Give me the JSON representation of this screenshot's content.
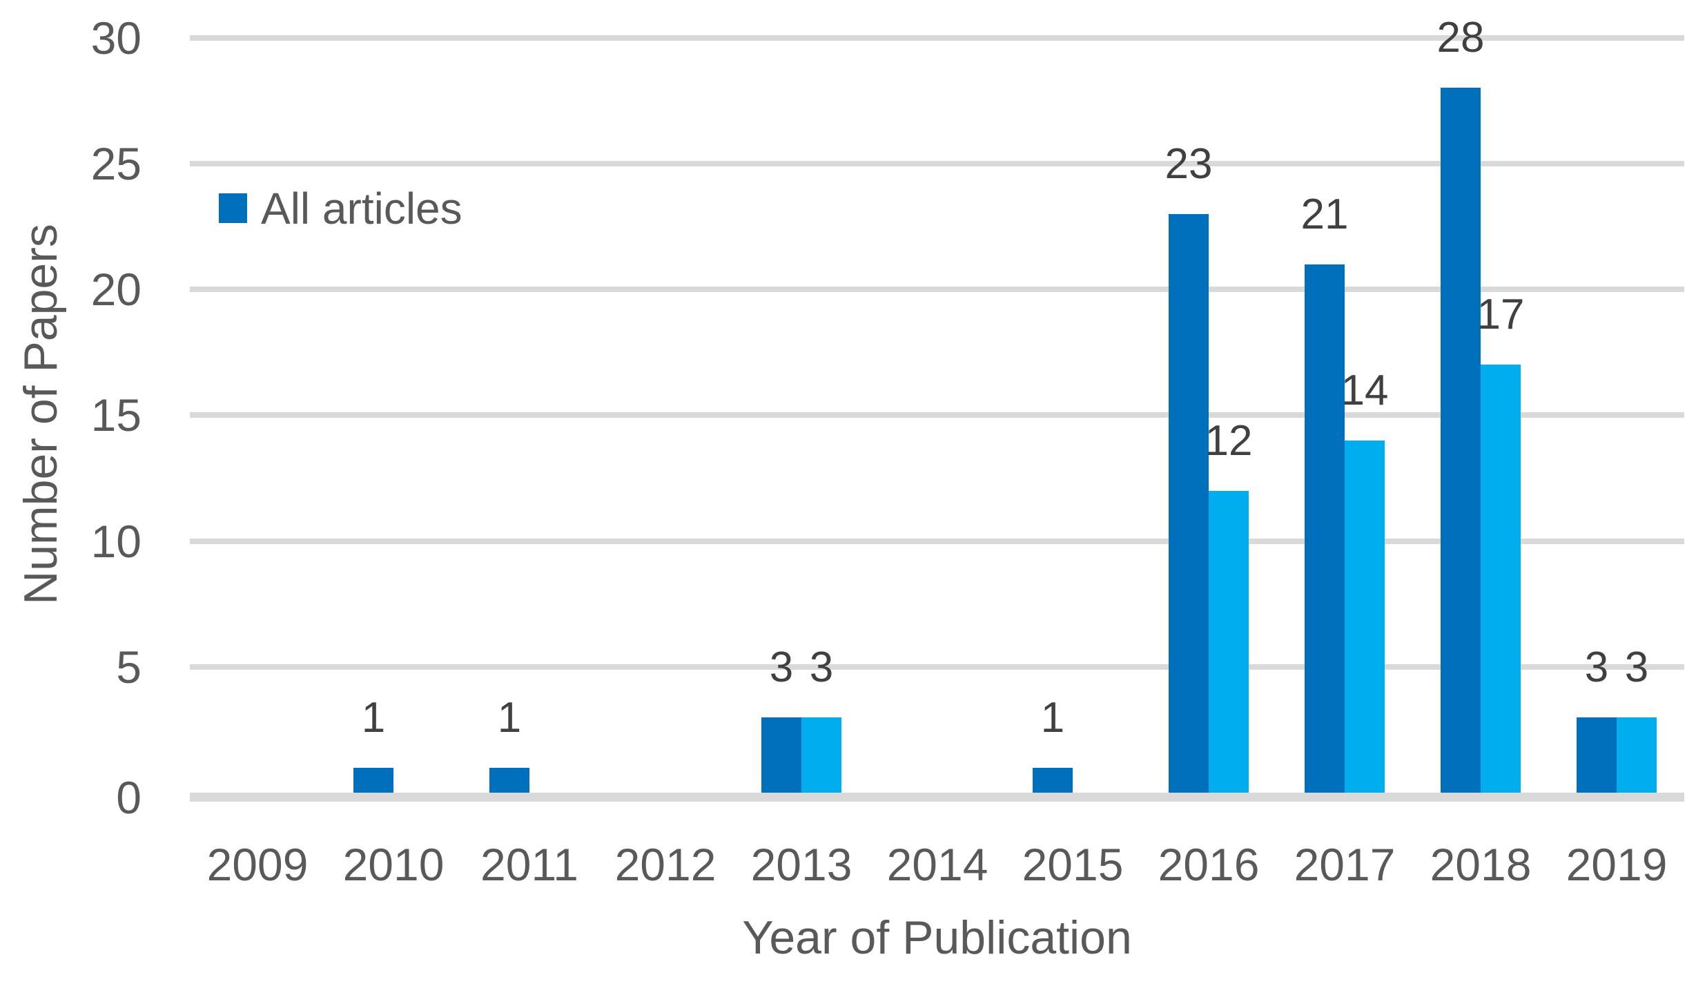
{
  "chart_data": {
    "type": "bar",
    "title": "",
    "categories": [
      "2009",
      "2010",
      "2011",
      "2012",
      "2013",
      "2014",
      "2015",
      "2016",
      "2017",
      "2018",
      "2019"
    ],
    "series": [
      {
        "name": "All articles",
        "color": "#0070BD",
        "values": [
          0,
          1,
          1,
          0,
          3,
          0,
          1,
          23,
          21,
          28,
          3
        ],
        "show_in_legend": true
      },
      {
        "name": "",
        "color": "#00AEEF",
        "values": [
          0,
          0,
          0,
          0,
          3,
          0,
          0,
          12,
          14,
          17,
          3
        ],
        "show_in_legend": false
      }
    ],
    "data_labels": {
      "position": "outside-end",
      "color": "#404040",
      "shown_only_when_nonzero": true
    },
    "x_axis": {
      "label": "Year of Publication"
    },
    "y_axis": {
      "label": "Number of Papers",
      "min": 0,
      "max": 30,
      "tick_step": 5,
      "ticks": [
        0,
        5,
        10,
        15,
        20,
        25,
        30
      ]
    },
    "legend": {
      "position": "inside-top-left",
      "entries": [
        {
          "label": "All articles",
          "marker_color": "#0070BD"
        }
      ]
    },
    "grid": {
      "horizontal": true,
      "color": "#D9D9D9"
    },
    "axis_line_color": "#D9D9D9",
    "text_color": "#595959",
    "background_color": "#FFFFFF"
  }
}
